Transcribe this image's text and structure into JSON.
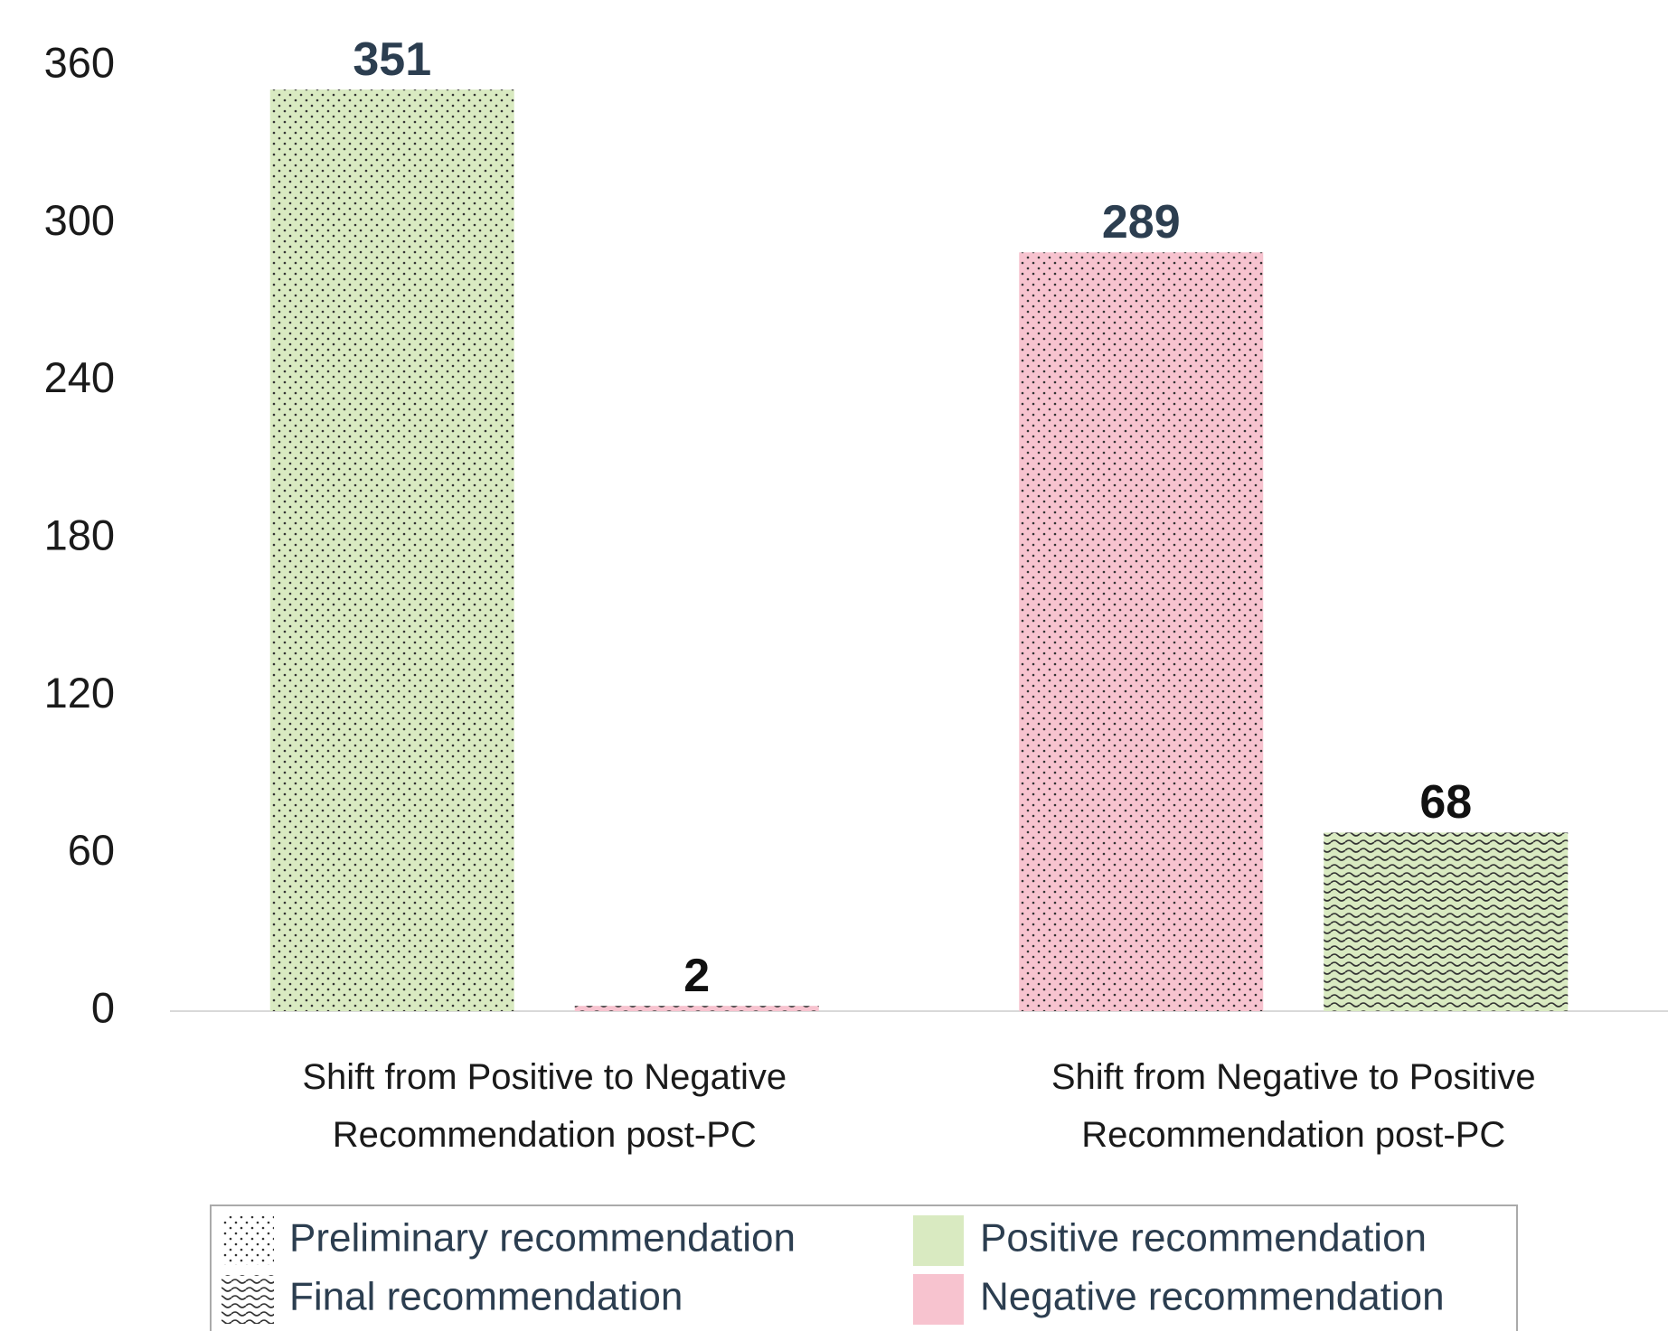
{
  "chart_data": {
    "type": "bar",
    "categories": [
      "Shift from Positive to Negative Recommendation post-PC",
      "Shift from Negative to Positive Recommendation post-PC"
    ],
    "series": [
      {
        "name": "Preliminary recommendation",
        "pattern": "dots",
        "colors": [
          "#d9eac1",
          "#f7c3cf"
        ],
        "label_color": "#2c3e50",
        "values": [
          351,
          289
        ]
      },
      {
        "name": "Final recommendation",
        "pattern": "waves",
        "colors": [
          "#f7c3cf",
          "#d9eac1"
        ],
        "label_color": "#111111",
        "values": [
          2,
          68
        ]
      }
    ],
    "color_legend": [
      {
        "name": "Positive recommendation",
        "color": "#d9eac1"
      },
      {
        "name": "Negative recommendation",
        "color": "#f7c3cf"
      }
    ],
    "ylim": [
      0,
      360
    ],
    "yticks": [
      0,
      60,
      120,
      180,
      240,
      300,
      360
    ],
    "grid": false
  }
}
